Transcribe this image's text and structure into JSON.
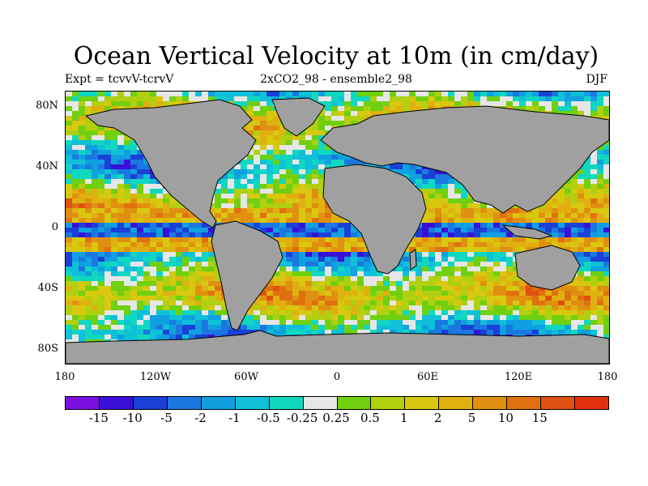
{
  "title": "Ocean Vertical Velocity at 10m (in cm/day)",
  "experiment": "Expt = tcvvV-tcrvV",
  "run": "2xCO2_98 - ensemble2_98",
  "season": "DJF",
  "lat_labels": [
    "80N",
    "40N",
    "0",
    "40S",
    "80S"
  ],
  "lon_labels": [
    "180",
    "120W",
    "60W",
    "0",
    "60E",
    "120E",
    "180"
  ],
  "colorbar": {
    "colors": [
      "#7a10e0",
      "#3a10d8",
      "#1a40d8",
      "#1a78e0",
      "#10a0e0",
      "#10c0d8",
      "#10d8c0",
      "#e6e6e6",
      "#70d010",
      "#b0d010",
      "#d8c810",
      "#e0b010",
      "#e09010",
      "#e07010",
      "#e05010",
      "#e03010"
    ],
    "labels": [
      "-15",
      "-10",
      "-5",
      "-2",
      "-1",
      "-0.5",
      "-0.25",
      "0.25",
      "0.5",
      "1",
      "2",
      "5",
      "10",
      "15"
    ]
  },
  "land_color": "#a0a0a0"
}
